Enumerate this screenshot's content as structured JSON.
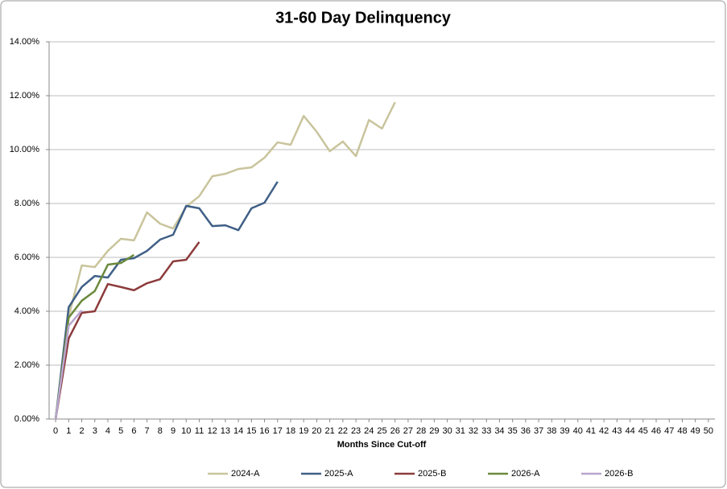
{
  "chart_data": {
    "type": "line",
    "title": "31-60 Day Delinquency",
    "x_label": "Months Since Cut-off",
    "x": [
      0,
      1,
      2,
      3,
      4,
      5,
      6,
      7,
      8,
      9,
      10,
      11,
      12,
      13,
      14,
      15,
      16,
      17,
      18,
      19,
      20,
      21,
      22,
      23,
      24,
      25,
      26,
      27,
      28,
      29,
      30,
      31,
      32,
      33,
      34,
      35,
      36,
      37,
      38,
      39,
      40,
      41,
      42,
      43,
      44,
      45,
      46,
      47,
      48,
      49,
      50
    ],
    "xlim": [
      -0.5,
      50.5
    ],
    "xticks": [
      0,
      1,
      2,
      3,
      4,
      5,
      6,
      7,
      8,
      9,
      10,
      11,
      12,
      13,
      14,
      15,
      16,
      17,
      18,
      19,
      20,
      21,
      22,
      23,
      24,
      25,
      26,
      27,
      28,
      29,
      30,
      31,
      32,
      33,
      34,
      35,
      36,
      37,
      38,
      39,
      40,
      41,
      42,
      43,
      44,
      45,
      46,
      47,
      48,
      49,
      50
    ],
    "ylim": [
      0,
      14
    ],
    "yticks": [
      {
        "value": 0,
        "label": "0.00%"
      },
      {
        "value": 2,
        "label": "2.00%"
      },
      {
        "value": 4,
        "label": "4.00%"
      },
      {
        "value": 6,
        "label": "6.00%"
      },
      {
        "value": 8,
        "label": "8.00%"
      },
      {
        "value": 10,
        "label": "10.00%"
      },
      {
        "value": 12,
        "label": "12.00%"
      },
      {
        "value": 14,
        "label": "14.00%"
      }
    ],
    "grid": true,
    "legend": "bottom",
    "series": [
      {
        "name": "2024-A",
        "color": "#c9c49c",
        "values": [
          0,
          3.8,
          5.7,
          5.64,
          6.24,
          6.69,
          6.63,
          7.67,
          7.25,
          7.07,
          7.88,
          8.27,
          9.01,
          9.1,
          9.28,
          9.34,
          9.7,
          10.27,
          10.18,
          11.25,
          10.66,
          9.94,
          10.3,
          9.76,
          11.1,
          10.78,
          11.76,
          null,
          null,
          null,
          null,
          null,
          null,
          null,
          null,
          null,
          null,
          null,
          null,
          null,
          null,
          null,
          null,
          null,
          null,
          null,
          null,
          null,
          null,
          null,
          null
        ]
      },
      {
        "name": "2025-A",
        "color": "#3f5f86",
        "values": [
          0,
          4.15,
          4.9,
          5.31,
          5.25,
          5.91,
          5.97,
          6.24,
          6.66,
          6.84,
          7.91,
          7.82,
          7.16,
          7.19,
          7.01,
          7.82,
          8.03,
          8.81,
          null,
          null,
          null,
          null,
          null,
          null,
          null,
          null,
          null,
          null,
          null,
          null,
          null,
          null,
          null,
          null,
          null,
          null,
          null,
          null,
          null,
          null,
          null,
          null,
          null,
          null,
          null,
          null,
          null,
          null,
          null,
          null,
          null
        ]
      },
      {
        "name": "2025-B",
        "color": "#8c3b3c",
        "values": [
          0,
          2.99,
          3.94,
          4.0,
          5.01,
          4.9,
          4.78,
          5.04,
          5.19,
          5.85,
          5.91,
          6.57,
          null,
          null,
          null,
          null,
          null,
          null,
          null,
          null,
          null,
          null,
          null,
          null,
          null,
          null,
          null,
          null,
          null,
          null,
          null,
          null,
          null,
          null,
          null,
          null,
          null,
          null,
          null,
          null,
          null,
          null,
          null,
          null,
          null,
          null,
          null,
          null,
          null,
          null,
          null
        ]
      },
      {
        "name": "2026-A",
        "color": "#6b8a3c",
        "values": [
          0,
          3.76,
          4.39,
          4.75,
          5.73,
          5.79,
          6.09,
          null,
          null,
          null,
          null,
          null,
          null,
          null,
          null,
          null,
          null,
          null,
          null,
          null,
          null,
          null,
          null,
          null,
          null,
          null,
          null,
          null,
          null,
          null,
          null,
          null,
          null,
          null,
          null,
          null,
          null,
          null,
          null,
          null,
          null,
          null,
          null,
          null,
          null,
          null,
          null,
          null,
          null,
          null,
          null
        ]
      },
      {
        "name": "2026-B",
        "color": "#b9a6cf",
        "values": [
          0,
          3.46,
          4.03,
          null,
          null,
          null,
          null,
          null,
          null,
          null,
          null,
          null,
          null,
          null,
          null,
          null,
          null,
          null,
          null,
          null,
          null,
          null,
          null,
          null,
          null,
          null,
          null,
          null,
          null,
          null,
          null,
          null,
          null,
          null,
          null,
          null,
          null,
          null,
          null,
          null,
          null,
          null,
          null,
          null,
          null,
          null,
          null,
          null,
          null,
          null,
          null
        ]
      }
    ]
  }
}
